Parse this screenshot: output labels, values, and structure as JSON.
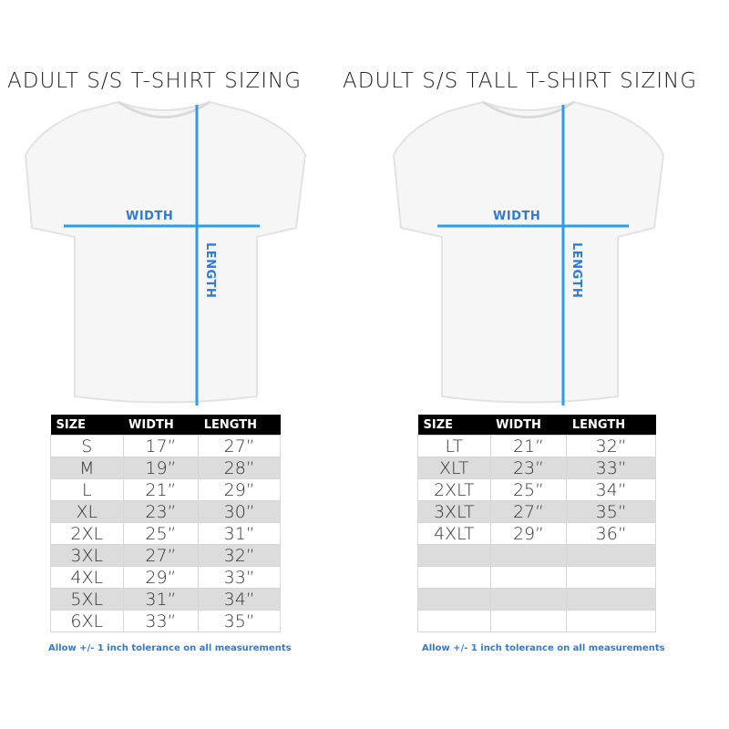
{
  "accent_color": "#2f7ad8",
  "left": {
    "title": "ADULT S/S T-SHIRT SIZING",
    "width_label": "WIDTH",
    "length_label": "LENGTH",
    "headers": [
      "SIZE",
      "WIDTH",
      "LENGTH"
    ],
    "rows": [
      [
        "S",
        "17”",
        "27”"
      ],
      [
        "M",
        "19”",
        "28”"
      ],
      [
        "L",
        "21”",
        "29”"
      ],
      [
        "XL",
        "23”",
        "30”"
      ],
      [
        "2XL",
        "25”",
        "31”"
      ],
      [
        "3XL",
        "27”",
        "32”"
      ],
      [
        "4XL",
        "29”",
        "33”"
      ],
      [
        "5XL",
        "31”",
        "34”"
      ],
      [
        "6XL",
        "33”",
        "35”"
      ]
    ],
    "note": "Allow +/- 1 inch tolerance on all measurements"
  },
  "right": {
    "title": "ADULT S/S TALL T-SHIRT SIZING",
    "width_label": "WIDTH",
    "length_label": "LENGTH",
    "headers": [
      "SIZE",
      "WIDTH",
      "LENGTH"
    ],
    "rows": [
      [
        "LT",
        "21”",
        "32”"
      ],
      [
        "XLT",
        "23”",
        "33”"
      ],
      [
        "2XLT",
        "25”",
        "34”"
      ],
      [
        "3XLT",
        "27”",
        "35”"
      ],
      [
        "4XLT",
        "29”",
        "36”"
      ],
      [
        "",
        "",
        ""
      ],
      [
        "",
        "",
        ""
      ],
      [
        "",
        "",
        ""
      ],
      [
        "",
        "",
        ""
      ]
    ],
    "note": "Allow +/- 1 inch tolerance on all measurements"
  }
}
